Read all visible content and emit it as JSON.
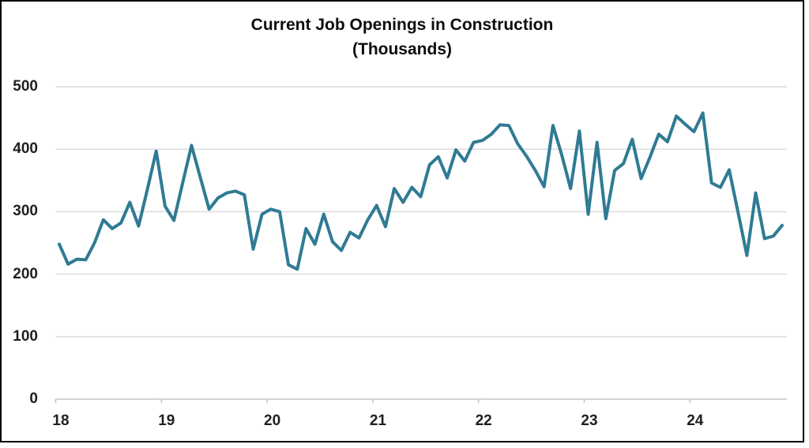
{
  "header": {
    "title_line1": "Current Job Openings in Construction",
    "title_line2": "(Thousands)"
  },
  "colors": {
    "line": "#2f7b93",
    "gridline": "#d9d9d9",
    "axis": "#c6c6c6",
    "tick": "#bfbfbf",
    "text": "#1f1f1f",
    "border": "#000000"
  },
  "chart_data": {
    "type": "line",
    "title": "Current Job Openings in Construction (Thousands)",
    "series_name": "Construction job openings (thousands)",
    "frequency": "monthly",
    "x_start": "2018-01",
    "x_end": "2024-11",
    "x_tick_labels": [
      "18",
      "19",
      "20",
      "21",
      "22",
      "23",
      "24"
    ],
    "y_tick_labels": [
      "0",
      "100",
      "200",
      "300",
      "400",
      "500"
    ],
    "ylim": [
      0,
      500
    ],
    "grid": "horizontal",
    "legend": "none",
    "values": [
      248,
      216,
      224,
      223,
      250,
      287,
      273,
      282,
      315,
      277,
      336,
      397,
      309,
      286,
      346,
      406,
      355,
      304,
      322,
      330,
      333,
      327,
      240,
      296,
      304,
      300,
      215,
      208,
      273,
      248,
      296,
      252,
      238,
      267,
      258,
      287,
      310,
      276,
      337,
      315,
      339,
      324,
      375,
      388,
      354,
      399,
      381,
      411,
      414,
      424,
      439,
      438,
      409,
      389,
      366,
      340,
      438,
      391,
      337,
      429,
      296,
      411,
      289,
      366,
      377,
      416,
      353,
      387,
      424,
      412,
      453,
      440,
      428,
      458,
      346,
      339,
      367,
      299,
      230,
      330,
      257,
      261,
      278
    ]
  }
}
